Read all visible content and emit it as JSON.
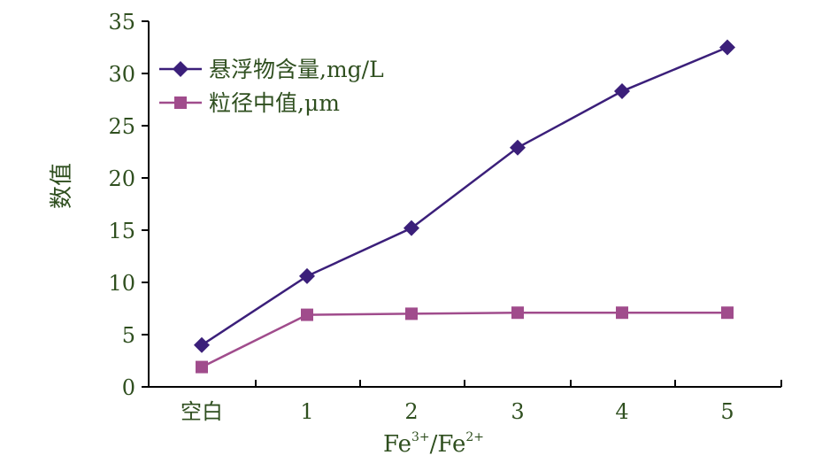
{
  "chart_data": {
    "type": "line",
    "categories": [
      "空白",
      "1",
      "2",
      "3",
      "4",
      "5"
    ],
    "xlabel_parts": [
      "Fe",
      "3+",
      "/Fe",
      "2+"
    ],
    "ylabel": "数值",
    "ylim": [
      0,
      35
    ],
    "yticks": [
      "0",
      "5",
      "10",
      "15",
      "20",
      "25",
      "30",
      "35"
    ],
    "grid": false,
    "legend_position": "top-left",
    "series": [
      {
        "name": "悬浮物含量,mg/L",
        "values": [
          4.0,
          10.6,
          15.2,
          22.9,
          28.3,
          32.5
        ],
        "color": "#3b1f7a",
        "marker": "diamond"
      },
      {
        "name": "粒径中值,μm",
        "values": [
          1.9,
          6.9,
          7.0,
          7.1,
          7.1,
          7.1
        ],
        "color": "#a04c8c",
        "marker": "square"
      }
    ]
  }
}
